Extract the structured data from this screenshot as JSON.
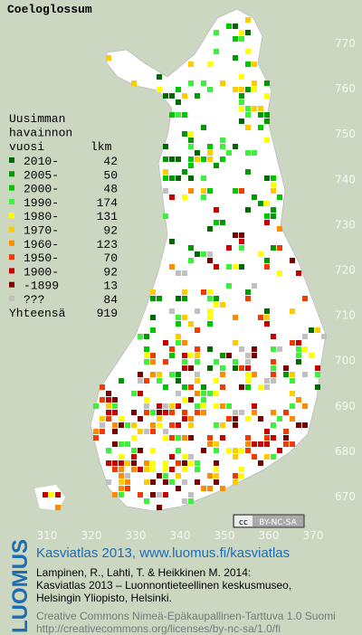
{
  "title": "Coeloglossum",
  "legend": {
    "heading": [
      "Uusimman",
      "havainnon",
      "vuosi"
    ],
    "count_heading": "lkm",
    "rows": [
      {
        "label": "2010-",
        "count": 42,
        "color": "#006a00"
      },
      {
        "label": "2005-",
        "count": 50,
        "color": "#009a00"
      },
      {
        "label": "2000-",
        "count": 48,
        "color": "#00c800"
      },
      {
        "label": "1990-",
        "count": 174,
        "color": "#3cf03c"
      },
      {
        "label": "1980-",
        "count": 131,
        "color": "#ffff00"
      },
      {
        "label": "1970-",
        "count": 92,
        "color": "#ffcc00"
      },
      {
        "label": "1960-",
        "count": 123,
        "color": "#ff8c00"
      },
      {
        "label": "1950-",
        "count": 70,
        "color": "#f03c00"
      },
      {
        "label": "1900-",
        "count": 92,
        "color": "#c80000"
      },
      {
        "label": "-1899",
        "count": 13,
        "color": "#7a0000"
      },
      {
        "label": "???",
        "count": 84,
        "color": "#c0c0c0"
      }
    ],
    "total_label": "Yhteensä",
    "total": 919
  },
  "axes": {
    "y_labels": [
      770,
      760,
      750,
      740,
      730,
      720,
      710,
      700,
      690,
      680,
      670
    ],
    "x_labels": [
      310,
      320,
      330,
      340,
      350,
      360,
      370
    ]
  },
  "badge": {
    "cc": "cc",
    "license": "BY-NC-SA"
  },
  "footer": {
    "brand": "LUOMUS",
    "link": "Kasviatlas 2013, www.luomus.fi/kasviatlas",
    "citation": [
      "Lampinen, R., Lahti, T. & Heikkinen M. 2014:",
      "Kasviatlas 2013 – Luonnontieteellinen keskusmuseo,",
      "Helsingin Yliopisto, Helsinki."
    ],
    "license": [
      "Creative Commons Nimeä-Epäkaupallinen-Tarttuva 1.0 Suomi",
      "http://creativecommons.org/licenses/by-nc-sa/1.0/fi"
    ]
  }
}
